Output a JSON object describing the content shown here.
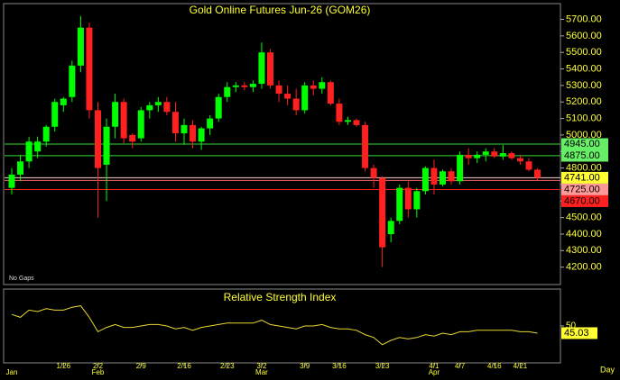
{
  "chart_data": {
    "type": "candlestick",
    "title": "Gold Online Futures Jun-26 (GOM26)",
    "note": "No Gaps",
    "x_axis_label": "Day",
    "categories": [
      null,
      null,
      null,
      null,
      null,
      null,
      "1/26",
      null,
      null,
      null,
      "2/2",
      null,
      null,
      null,
      null,
      "2/9",
      null,
      null,
      null,
      null,
      "2/16",
      null,
      null,
      null,
      null,
      "2/23",
      null,
      null,
      null,
      "3/2",
      null,
      null,
      null,
      null,
      "3/9",
      null,
      null,
      null,
      "3/16",
      null,
      null,
      null,
      null,
      "3/23",
      null,
      null,
      null,
      null,
      null,
      "4/1",
      null,
      null,
      "4/7",
      null,
      null,
      null,
      "4/16",
      null,
      null,
      "4/21",
      null,
      null
    ],
    "month_labels": [
      "Jan",
      null,
      null,
      null,
      null,
      null,
      null,
      null,
      null,
      null,
      "Feb",
      null,
      null,
      null,
      null,
      null,
      null,
      null,
      null,
      null,
      null,
      null,
      null,
      null,
      null,
      null,
      null,
      null,
      null,
      "Mar",
      null,
      null,
      null,
      null,
      null,
      null,
      null,
      null,
      null,
      null,
      null,
      null,
      null,
      null,
      null,
      null,
      null,
      null,
      null,
      "Apr",
      null,
      null,
      null,
      null,
      null,
      null,
      null,
      null,
      null,
      null,
      null,
      null
    ],
    "open": [
      4680,
      4760,
      4840,
      4900,
      4960,
      5050,
      5180,
      5230,
      5420,
      5650,
      5150,
      4820,
      5050,
      5200,
      5000,
      4980,
      5150,
      5180,
      5200,
      5140,
      5010,
      5060,
      4960,
      5040,
      5100,
      5230,
      5290,
      5300,
      5290,
      5310,
      5500,
      5300,
      5250,
      5220,
      5150,
      5300,
      5280,
      5320,
      5190,
      5080,
      5090,
      5060,
      4800,
      4740,
      4400,
      4480,
      4680,
      4550,
      4660,
      4800,
      4700,
      4780,
      4720,
      4880,
      4860,
      4880,
      4900,
      4870,
      4890,
      4860,
      4840,
      4790
    ],
    "high": [
      4800,
      4880,
      4990,
      4990,
      5060,
      5220,
      5230,
      5450,
      5720,
      5680,
      5200,
      5100,
      5250,
      5220,
      5010,
      5170,
      5200,
      5230,
      5230,
      5200,
      5100,
      5090,
      5050,
      5120,
      5250,
      5320,
      5320,
      5320,
      5330,
      5560,
      5520,
      5330,
      5300,
      5280,
      5320,
      5330,
      5350,
      5330,
      5220,
      5110,
      5100,
      5080,
      4820,
      4750,
      4500,
      4700,
      4720,
      4680,
      4810,
      4850,
      4790,
      4800,
      4900,
      4920,
      4900,
      4920,
      4920,
      4940,
      4900,
      4880,
      4860,
      4800
    ],
    "low": [
      4640,
      4720,
      4800,
      4860,
      4930,
      5020,
      5140,
      5200,
      5380,
      5100,
      4500,
      4600,
      4980,
      4950,
      4920,
      4960,
      5100,
      5140,
      5120,
      4960,
      4940,
      4920,
      4910,
      5000,
      5080,
      5200,
      5260,
      5270,
      5260,
      5280,
      5280,
      5200,
      5180,
      5120,
      5130,
      5240,
      5250,
      5180,
      5060,
      5060,
      5050,
      4780,
      4680,
      4200,
      4350,
      4460,
      4500,
      4500,
      4640,
      4640,
      4690,
      4700,
      4700,
      4820,
      4830,
      4840,
      4860,
      4850,
      4850,
      4820,
      4780,
      4720
    ],
    "close": [
      4760,
      4840,
      4960,
      4960,
      5050,
      5200,
      5220,
      5420,
      5650,
      5150,
      4800,
      5050,
      5200,
      4980,
      4960,
      5150,
      5180,
      5200,
      5140,
      5010,
      5060,
      4960,
      5040,
      5100,
      5230,
      5290,
      5300,
      5290,
      5310,
      5500,
      5300,
      5250,
      5220,
      5150,
      5300,
      5280,
      5320,
      5190,
      5080,
      5090,
      5060,
      4800,
      4740,
      4320,
      4480,
      4680,
      4550,
      4660,
      4800,
      4700,
      4780,
      4720,
      4880,
      4860,
      4880,
      4900,
      4870,
      4890,
      4860,
      4840,
      4790,
      4741
    ],
    "up_color": "#00ff00",
    "down_color": "#ff2020",
    "ylim": [
      4100,
      5790
    ],
    "yticks": [
      {
        "value": 4200,
        "label": "4200.00"
      },
      {
        "value": 4300,
        "label": "4300.00"
      },
      {
        "value": 4400,
        "label": "4400.00"
      },
      {
        "value": 4500,
        "label": "4500.00"
      },
      {
        "value": 4600,
        "label": "4600.00"
      },
      {
        "value": 4700,
        "label": "4700.00"
      },
      {
        "value": 4800,
        "label": "4800.00"
      },
      {
        "value": 4900,
        "label": "4900.00"
      },
      {
        "value": 5000,
        "label": "5000.00"
      },
      {
        "value": 5100,
        "label": "5100.00"
      },
      {
        "value": 5200,
        "label": "5200.00"
      },
      {
        "value": 5300,
        "label": "5300.00"
      },
      {
        "value": 5400,
        "label": "5400.00"
      },
      {
        "value": 5500,
        "label": "5500.00"
      },
      {
        "value": 5600,
        "label": "5600.00"
      },
      {
        "value": 5700,
        "label": "5700.00"
      }
    ],
    "levels": [
      {
        "value": 4945,
        "label": "4945.00",
        "color": "#33dd33",
        "box": "#66ee66"
      },
      {
        "value": 4875,
        "label": "4875.00",
        "color": "#33dd33",
        "box": "#66ee66"
      },
      {
        "value": 4741,
        "label": "4741.00",
        "color": "#ffd0d0",
        "box": "#ffff33"
      },
      {
        "value": 4725,
        "label": "4725.00",
        "color": "#ff6666",
        "box": "#ff9999"
      },
      {
        "value": 4670,
        "label": "4670.00",
        "color": "#ff2020",
        "box": "#ff2020"
      }
    ],
    "indicator": {
      "title": "Relative Strength Index",
      "color": "#e8d830",
      "values": [
        58,
        56,
        61,
        60,
        62,
        61,
        61,
        63,
        64,
        56,
        46,
        49,
        51,
        49,
        49,
        50,
        51,
        51,
        50,
        48,
        49,
        47,
        49,
        50,
        51,
        52,
        52,
        52,
        52,
        54,
        51,
        50,
        49,
        48,
        50,
        50,
        51,
        49,
        48,
        48,
        47,
        44,
        42,
        37,
        40,
        42,
        41,
        42,
        44,
        43,
        45,
        44,
        46,
        46,
        47,
        47,
        47,
        47,
        47,
        46,
        46,
        45.03
      ],
      "last_label": "45.03",
      "ylim": [
        25,
        75
      ],
      "yticks": [
        50
      ]
    }
  }
}
